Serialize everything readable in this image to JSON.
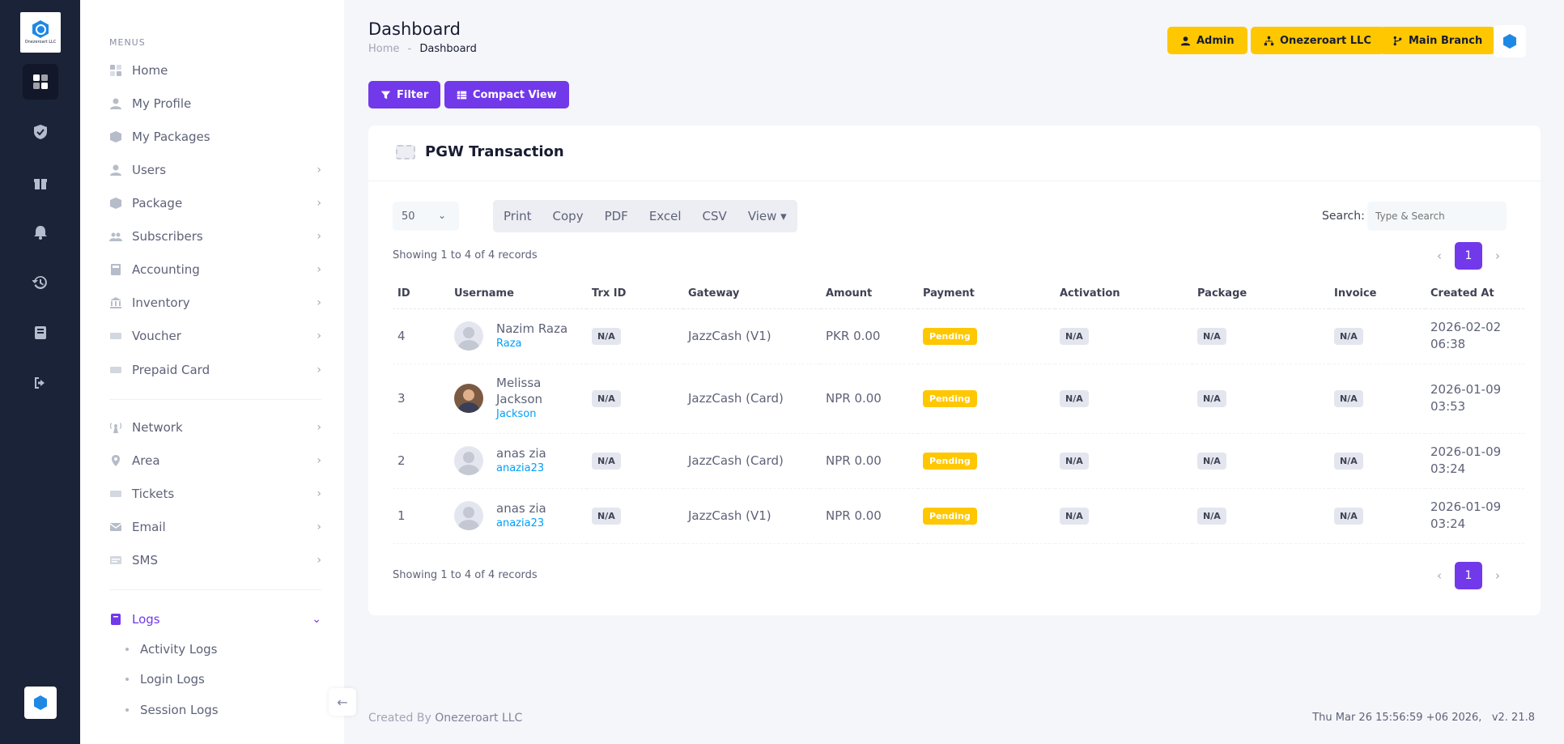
{
  "brand": {
    "logo_text": "Onezeroart LLC"
  },
  "rail": [
    "dashboard-icon",
    "shield-check-icon",
    "gift-icon",
    "bell-icon",
    "history-icon",
    "book-icon",
    "logout-icon"
  ],
  "menu": {
    "heading": "MENUS",
    "items": [
      {
        "label": "Home",
        "icon": "grid-icon",
        "chevron": false
      },
      {
        "label": "My Profile",
        "icon": "user-icon",
        "chevron": false
      },
      {
        "label": "My Packages",
        "icon": "box-icon",
        "chevron": false
      },
      {
        "label": "Users",
        "icon": "user-icon",
        "chevron": true
      },
      {
        "label": "Package",
        "icon": "box-icon",
        "chevron": true
      },
      {
        "label": "Subscribers",
        "icon": "users-icon",
        "chevron": true
      },
      {
        "label": "Accounting",
        "icon": "calculator-icon",
        "chevron": true
      },
      {
        "label": "Inventory",
        "icon": "bank-icon",
        "chevron": true
      },
      {
        "label": "Voucher",
        "icon": "ticket-icon",
        "chevron": true
      },
      {
        "label": "Prepaid Card",
        "icon": "ticket-icon",
        "chevron": true
      },
      {
        "label": "Network",
        "icon": "antenna-icon",
        "chevron": true
      },
      {
        "label": "Area",
        "icon": "map-pin-icon",
        "chevron": true
      },
      {
        "label": "Tickets",
        "icon": "ticket-icon",
        "chevron": true
      },
      {
        "label": "Email",
        "icon": "envelope-icon",
        "chevron": true
      },
      {
        "label": "SMS",
        "icon": "message-icon",
        "chevron": true
      },
      {
        "label": "Logs",
        "icon": "book-icon",
        "chevron": true
      }
    ],
    "logs_sub": [
      "Activity Logs",
      "Login Logs",
      "Session Logs"
    ]
  },
  "header": {
    "title": "Dashboard",
    "breadcrumb_home": "Home",
    "breadcrumb_sep": "-",
    "breadcrumb_current": "Dashboard",
    "admin": "Admin",
    "company": "Onezeroart LLC",
    "branch": "Main Branch"
  },
  "toolbar": {
    "filter": "Filter",
    "compact_view": "Compact View"
  },
  "card": {
    "title": "PGW Transaction",
    "page_length": "50",
    "export_buttons": [
      "Print",
      "Copy",
      "PDF",
      "Excel",
      "CSV",
      "View ▾"
    ],
    "search_label": "Search:",
    "search_placeholder": "Type & Search",
    "showing": "Showing 1 to 4 of 4 records",
    "current_page": "1",
    "columns": [
      "ID",
      "Username",
      "Trx ID",
      "Gateway",
      "Amount",
      "Payment",
      "Activation",
      "Package",
      "Invoice",
      "Created At"
    ],
    "rows": [
      {
        "id": "4",
        "name": "Nazim Raza",
        "handle": "Raza",
        "trx": "N/A",
        "gateway": "JazzCash (V1)",
        "amount": "PKR 0.00",
        "payment": "Pending",
        "activation": "N/A",
        "package": "N/A",
        "invoice": "N/A",
        "date": "2026-02-02",
        "time": "06:38",
        "photo": false
      },
      {
        "id": "3",
        "name": "Melissa Jackson",
        "handle": "Jackson",
        "trx": "N/A",
        "gateway": "JazzCash (Card)",
        "amount": "NPR 0.00",
        "payment": "Pending",
        "activation": "N/A",
        "package": "N/A",
        "invoice": "N/A",
        "date": "2026-01-09",
        "time": "03:53",
        "photo": true
      },
      {
        "id": "2",
        "name": "anas zia",
        "handle": "anazia23",
        "trx": "N/A",
        "gateway": "JazzCash (Card)",
        "amount": "NPR 0.00",
        "payment": "Pending",
        "activation": "N/A",
        "package": "N/A",
        "invoice": "N/A",
        "date": "2026-01-09",
        "time": "03:24",
        "photo": false
      },
      {
        "id": "1",
        "name": "anas zia",
        "handle": "anazia23",
        "trx": "N/A",
        "gateway": "JazzCash (V1)",
        "amount": "NPR 0.00",
        "payment": "Pending",
        "activation": "N/A",
        "package": "N/A",
        "invoice": "N/A",
        "date": "2026-01-09",
        "time": "03:24",
        "photo": false
      }
    ]
  },
  "footer": {
    "created_by": "Created By",
    "company": "Onezeroart LLC",
    "datetime": "Thu Mar 26 15:56:59 +06 2026",
    "version": "v2.   21.8"
  },
  "colors": {
    "primary": "#7239ea",
    "warning": "#ffc700",
    "rail_bg": "#1b2339",
    "link": "#009ef7"
  }
}
